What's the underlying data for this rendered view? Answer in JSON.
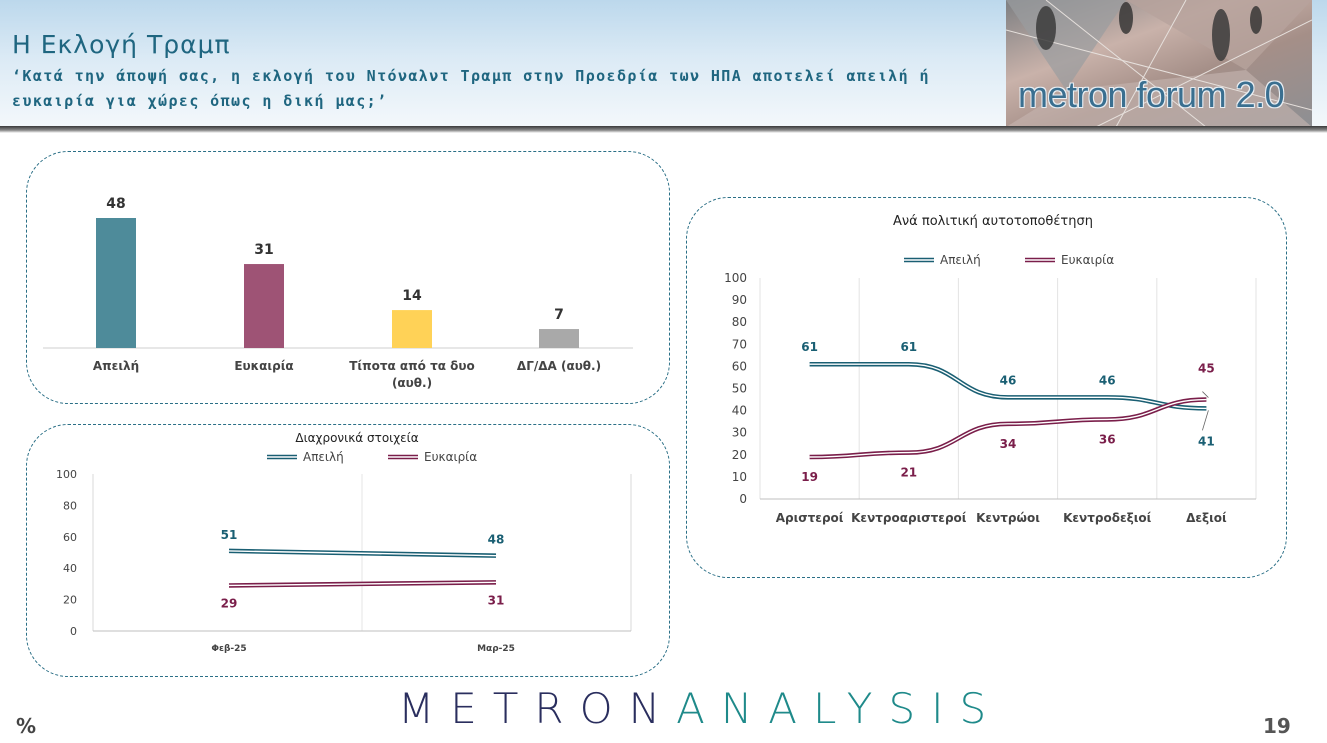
{
  "header": {
    "title": "Η Εκλογή Τραμπ",
    "subtitle": "‘Κατά την άποψή σας, η εκλογή του Ντόναλντ Τραμπ στην Προεδρία των ΗΠΑ αποτελεί απειλή ή ευκαιρία για χώρες όπως η δική μας;’",
    "logo_text": "metron forum 2.0"
  },
  "footer": {
    "brand_part1": "METRON",
    "brand_part2": "ANALYSIS",
    "percent_mark": "%",
    "page_number": "19"
  },
  "colors": {
    "threat": "#1a5f73",
    "opportunity": "#7a1e4a",
    "bar_threat": "#4e8b9a",
    "bar_opportunity": "#9e5375",
    "bar_neither": "#ffd257",
    "bar_dk": "#a9a9a9"
  },
  "chart_data": [
    {
      "type": "bar",
      "title": "",
      "categories": [
        "Απειλή",
        "Ευκαιρία",
        "Τίποτα από τα δυο (αυθ.)",
        "ΔΓ/ΔΑ (αυθ.)"
      ],
      "values": [
        48,
        31,
        14,
        7
      ],
      "ylim": [
        0,
        50
      ]
    },
    {
      "type": "line",
      "title": "Διαχρονικά στοιχεία",
      "x": [
        "Φεβ-25",
        "Μαρ-25"
      ],
      "series": [
        {
          "name": "Απειλή",
          "values": [
            51,
            48
          ]
        },
        {
          "name": "Ευκαιρία",
          "values": [
            29,
            31
          ]
        }
      ],
      "ylim": [
        0,
        100
      ],
      "yticks": [
        0,
        20,
        40,
        60,
        80,
        100
      ],
      "legend": "top"
    },
    {
      "type": "line",
      "title": "Ανά πολιτική αυτοτοποθέτηση",
      "x": [
        "Αριστεροί",
        "Κεντροαριστεροί",
        "Κεντρώοι",
        "Κεντροδεξιοί",
        "Δεξιοί"
      ],
      "series": [
        {
          "name": "Απειλή",
          "values": [
            61,
            61,
            46,
            46,
            41
          ]
        },
        {
          "name": "Ευκαιρία",
          "values": [
            19,
            21,
            34,
            36,
            45
          ]
        }
      ],
      "ylim": [
        0,
        100
      ],
      "yticks": [
        0,
        10,
        20,
        30,
        40,
        50,
        60,
        70,
        80,
        90,
        100
      ],
      "legend": "top"
    }
  ]
}
